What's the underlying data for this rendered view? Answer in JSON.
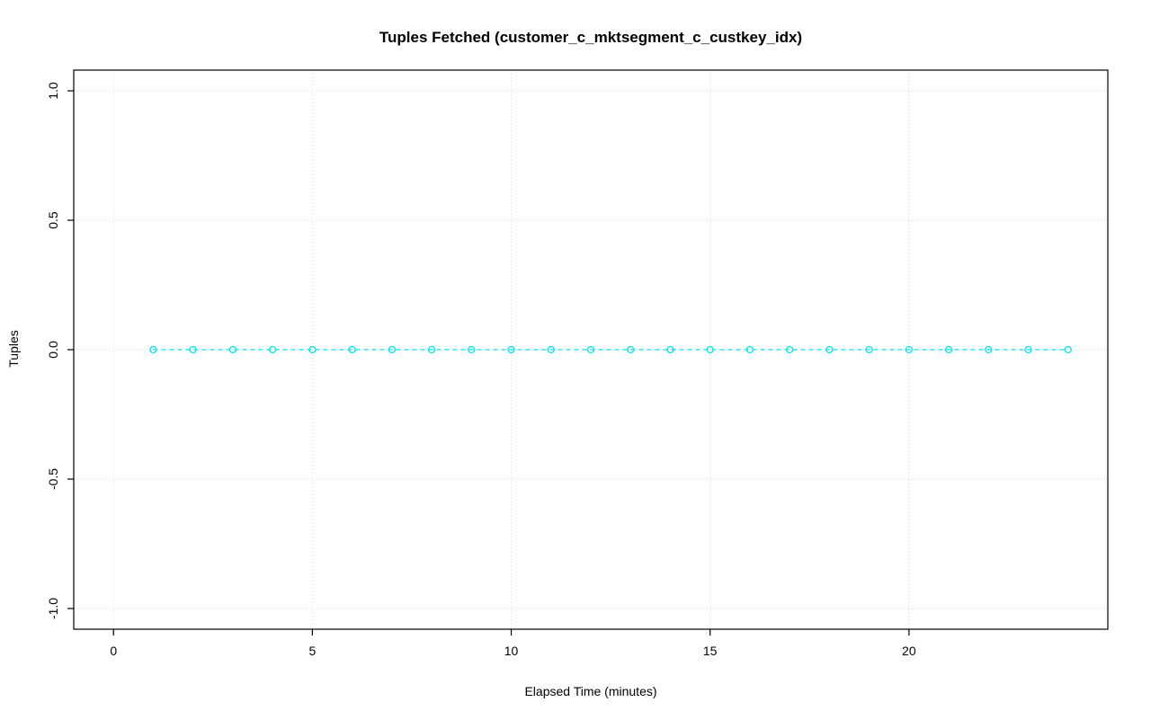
{
  "chart_data": {
    "type": "line",
    "title": "Tuples Fetched (customer_c_mktsegment_c_custkey_idx)",
    "xlabel": "Elapsed Time (minutes)",
    "ylabel": "Tuples",
    "x": [
      1,
      2,
      3,
      4,
      5,
      6,
      7,
      8,
      9,
      10,
      11,
      12,
      13,
      14,
      15,
      16,
      17,
      18,
      19,
      20,
      21,
      22,
      23,
      24
    ],
    "y": [
      0,
      0,
      0,
      0,
      0,
      0,
      0,
      0,
      0,
      0,
      0,
      0,
      0,
      0,
      0,
      0,
      0,
      0,
      0,
      0,
      0,
      0,
      0,
      0
    ],
    "xlim": [
      -1,
      25
    ],
    "ylim": [
      -1.08,
      1.08
    ],
    "xticks": [
      0,
      5,
      10,
      15,
      20
    ],
    "xtick_labels": [
      "0",
      "5",
      "10",
      "15",
      "20"
    ],
    "yticks": [
      -1.0,
      -0.5,
      0.0,
      0.5,
      1.0
    ],
    "ytick_labels": [
      "-1.0",
      "-0.5",
      "0.0",
      "0.5",
      "1.0"
    ],
    "series_color": "#00e5ee",
    "marker": "open-circle",
    "line_style": "dashed",
    "grid": true,
    "grid_style": "dotted",
    "grid_color": "#d6d6d6",
    "axis_color": "#000000",
    "legend_position": "none"
  }
}
